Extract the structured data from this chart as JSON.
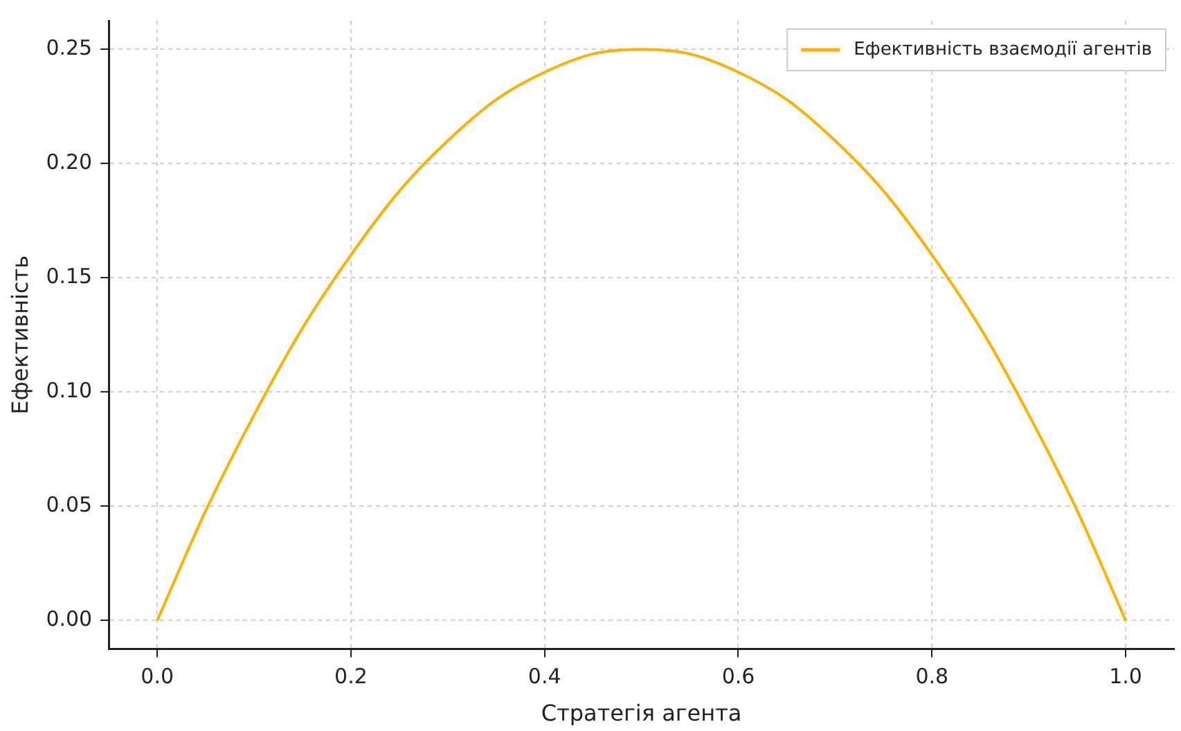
{
  "chart_data": {
    "type": "line",
    "xlabel": "Стратегія агента",
    "ylabel": "Ефективність",
    "x": [
      0,
      0.05,
      0.1,
      0.15,
      0.2,
      0.25,
      0.3,
      0.35,
      0.4,
      0.45,
      0.5,
      0.55,
      0.6,
      0.65,
      0.7,
      0.75,
      0.8,
      0.85,
      0.9,
      0.95,
      1
    ],
    "series": [
      {
        "name": "Ефективність взаємодії агентів",
        "color": "#ffb000",
        "values": [
          0,
          0.048,
          0.09,
          0.128,
          0.16,
          0.188,
          0.21,
          0.228,
          0.24,
          0.248,
          0.25,
          0.248,
          0.24,
          0.228,
          0.21,
          0.188,
          0.16,
          0.128,
          0.09,
          0.048,
          0
        ]
      }
    ],
    "xlim": [
      -0.05,
      1.05
    ],
    "xticks": [
      {
        "value": 0,
        "label": "0.0"
      },
      {
        "value": 0.2,
        "label": "0.2"
      },
      {
        "value": 0.4,
        "label": "0.4"
      },
      {
        "value": 0.6,
        "label": "0.6"
      },
      {
        "value": 0.8,
        "label": "0.8"
      },
      {
        "value": 1,
        "label": "1.0"
      }
    ],
    "ylim": [
      -0.0125,
      0.2625
    ],
    "yticks": [
      {
        "value": 0,
        "label": "0.00"
      },
      {
        "value": 0.05,
        "label": "0.05"
      },
      {
        "value": 0.1,
        "label": "0.10"
      },
      {
        "value": 0.15,
        "label": "0.15"
      },
      {
        "value": 0.2,
        "label": "0.20"
      },
      {
        "value": 0.25,
        "label": "0.25"
      }
    ],
    "grid": true,
    "legend": "top right",
    "marker": "none",
    "line_style": "solid"
  }
}
